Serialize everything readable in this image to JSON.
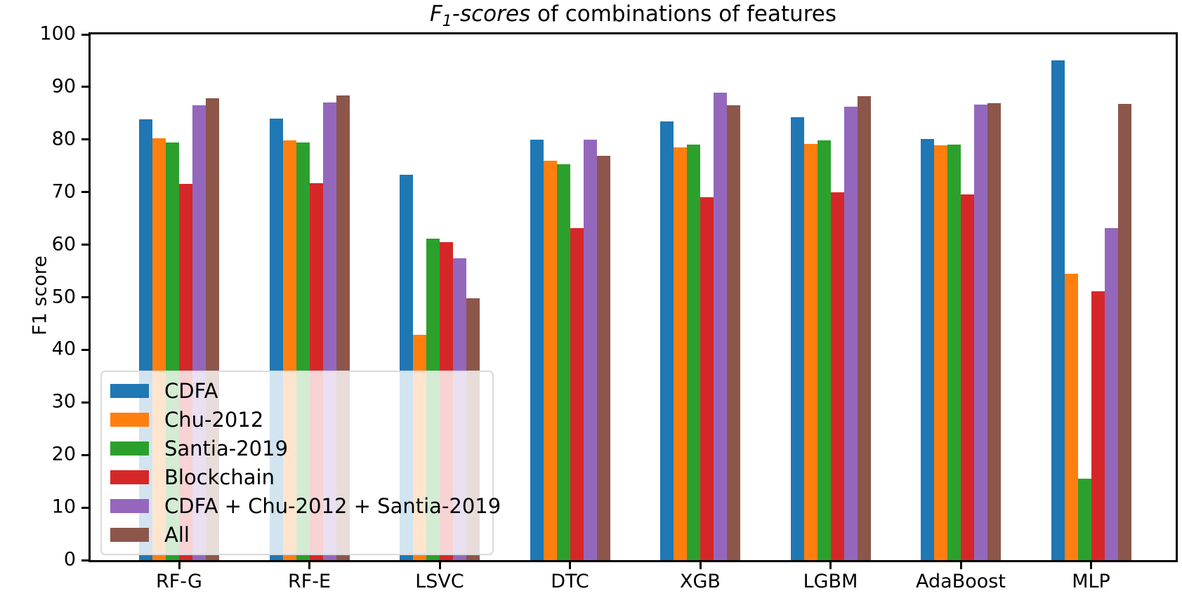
{
  "chart_data": {
    "type": "bar",
    "title": {
      "math_prefix": "F",
      "math_subscript": "1",
      "math_suffix": "-scores",
      "rest": " of combinations of features"
    },
    "ylabel": "F1 score",
    "ylim": [
      0,
      100
    ],
    "yticks": [
      0,
      10,
      20,
      30,
      40,
      50,
      60,
      70,
      80,
      90,
      100
    ],
    "grid": false,
    "legend_position": "lower left",
    "categories": [
      "RF-G",
      "RF-E",
      "LSVC",
      "DTC",
      "XGB",
      "LGBM",
      "AdaBoost",
      "MLP"
    ],
    "series": [
      {
        "name": "CDFA",
        "color": "#1f77b4",
        "values": [
          83.8,
          84.0,
          73.3,
          80.0,
          83.5,
          84.3,
          80.1,
          95.0
        ]
      },
      {
        "name": "Chu-2012",
        "color": "#ff7f0e",
        "values": [
          80.3,
          79.9,
          42.8,
          76.0,
          78.5,
          79.2,
          78.9,
          54.5
        ]
      },
      {
        "name": "Santia-2019",
        "color": "#2ca02c",
        "values": [
          79.5,
          79.5,
          61.2,
          75.3,
          79.1,
          79.9,
          79.0,
          15.5
        ]
      },
      {
        "name": "Blockchain",
        "color": "#d62728",
        "values": [
          71.5,
          71.7,
          60.5,
          63.1,
          69.0,
          70.0,
          69.6,
          51.1
        ]
      },
      {
        "name": "CDFA + Chu-2012 + Santia-2019",
        "color": "#9467bd",
        "values": [
          86.5,
          87.1,
          57.4,
          80.0,
          88.9,
          86.3,
          86.6,
          63.2
        ]
      },
      {
        "name": "All",
        "color": "#8c564b",
        "values": [
          87.9,
          88.4,
          49.8,
          76.9,
          86.5,
          88.2,
          86.9,
          86.8
        ]
      }
    ]
  }
}
